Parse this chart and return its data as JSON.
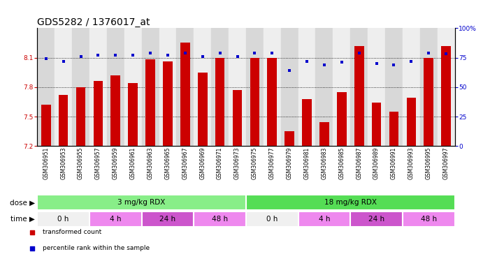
{
  "title": "GDS5282 / 1376017_at",
  "samples": [
    "GSM306951",
    "GSM306953",
    "GSM306955",
    "GSM306957",
    "GSM306959",
    "GSM306961",
    "GSM306963",
    "GSM306965",
    "GSM306967",
    "GSM306969",
    "GSM306971",
    "GSM306973",
    "GSM306975",
    "GSM306977",
    "GSM306979",
    "GSM306981",
    "GSM306983",
    "GSM306985",
    "GSM306987",
    "GSM306989",
    "GSM306991",
    "GSM306993",
    "GSM306995",
    "GSM306997"
  ],
  "bar_values": [
    7.62,
    7.72,
    7.8,
    7.86,
    7.92,
    7.84,
    8.08,
    8.06,
    8.25,
    7.95,
    8.1,
    7.77,
    8.1,
    8.1,
    7.35,
    7.68,
    7.44,
    7.75,
    8.22,
    7.64,
    7.55,
    7.69,
    8.1,
    8.22
  ],
  "dot_values": [
    74,
    72,
    76,
    77,
    77,
    77,
    79,
    77,
    79,
    76,
    79,
    76,
    79,
    79,
    64,
    72,
    69,
    71,
    79,
    70,
    69,
    72,
    79,
    78
  ],
  "ylim_left": [
    7.2,
    8.4
  ],
  "ylim_right": [
    0,
    100
  ],
  "yticks_left": [
    7.2,
    7.5,
    7.8,
    8.1
  ],
  "yticks_right": [
    0,
    25,
    50,
    75,
    100
  ],
  "bar_color": "#cc0000",
  "dot_color": "#0000cc",
  "bar_bottom": 7.2,
  "dose_groups": [
    {
      "label": "3 mg/kg RDX",
      "start": 0,
      "end": 12,
      "color": "#88ee88"
    },
    {
      "label": "18 mg/kg RDX",
      "start": 12,
      "end": 24,
      "color": "#55dd55"
    }
  ],
  "time_groups": [
    {
      "label": "0 h",
      "start": 0,
      "end": 3,
      "color": "#f0f0f0"
    },
    {
      "label": "4 h",
      "start": 3,
      "end": 6,
      "color": "#ee88ee"
    },
    {
      "label": "24 h",
      "start": 6,
      "end": 9,
      "color": "#cc55cc"
    },
    {
      "label": "48 h",
      "start": 9,
      "end": 12,
      "color": "#ee88ee"
    },
    {
      "label": "0 h",
      "start": 12,
      "end": 15,
      "color": "#f0f0f0"
    },
    {
      "label": "4 h",
      "start": 15,
      "end": 18,
      "color": "#ee88ee"
    },
    {
      "label": "24 h",
      "start": 18,
      "end": 21,
      "color": "#cc55cc"
    },
    {
      "label": "48 h",
      "start": 21,
      "end": 24,
      "color": "#ee88ee"
    }
  ],
  "legend_items": [
    {
      "label": "transformed count",
      "color": "#cc0000"
    },
    {
      "label": "percentile rank within the sample",
      "color": "#0000cc"
    }
  ],
  "title_fontsize": 10,
  "tick_fontsize": 6.5,
  "bar_label_fontsize": 5.5,
  "annot_fontsize": 7.5
}
